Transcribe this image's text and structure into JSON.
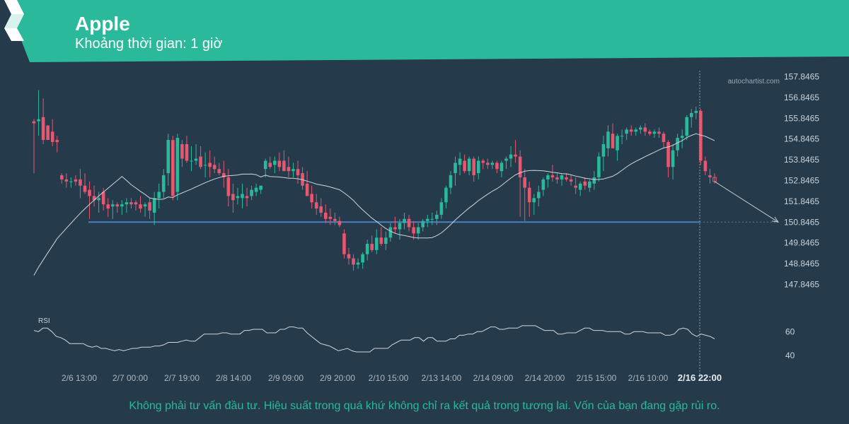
{
  "header": {
    "title": "Apple",
    "subtitle": "Khoảng thời gian: 1 giờ"
  },
  "watermark": "autochartist.com",
  "disclaimer": "Không phải tư vấn đầu tư. Hiệu suất trong quá khứ không chỉ ra kết quả trong tương lai. Vốn của bạn đang gặp rủi ro.",
  "colors": {
    "background": "#253a4b",
    "banner": "#2bb99b",
    "up_candle": "#2bb99b",
    "down_candle": "#e8566f",
    "support_line": "#4a7fc1",
    "moving_average": "#d0d6db",
    "rsi_line": "#d0d6db",
    "text": "#c9d2da"
  },
  "chart_data": {
    "type": "candlestick",
    "title": "Apple",
    "y_ticks": [
      "157.8465",
      "156.8465",
      "155.8465",
      "154.8465",
      "153.8465",
      "152.8465",
      "151.8465",
      "150.8465",
      "149.8465",
      "148.8465",
      "147.8465"
    ],
    "ylim": [
      147.25,
      158.0
    ],
    "x_labels": [
      "2/6 13:00",
      "2/7 00:00",
      "2/7 19:00",
      "2/8 14:00",
      "2/9 09:00",
      "2/9 20:00",
      "2/10 15:00",
      "2/13 14:00",
      "2/14 09:00",
      "2/14 20:00",
      "2/15 15:00",
      "2/16 10:00",
      "2/16 22:00"
    ],
    "x_label_highlight": "2/16 22:00",
    "support_level": 150.8465,
    "forecast_target": 150.8465,
    "candles": [
      [
        155.7,
        155.8,
        153.2,
        155.6
      ],
      [
        155.7,
        157.2,
        155.0,
        155.8
      ],
      [
        155.9,
        156.8,
        154.6,
        154.8
      ],
      [
        155.5,
        155.5,
        154.8,
        154.8
      ],
      [
        155.2,
        155.8,
        154.5,
        154.7
      ],
      [
        154.8,
        155.0,
        154.2,
        154.7
      ],
      [
        153.1,
        153.2,
        152.7,
        152.9
      ],
      [
        152.9,
        153.2,
        152.5,
        152.8
      ],
      [
        152.8,
        153.0,
        152.5,
        152.8
      ],
      [
        152.9,
        153.1,
        152.6,
        152.8
      ],
      [
        152.9,
        153.4,
        152.0,
        152.6
      ],
      [
        152.6,
        153.2,
        152.2,
        152.3
      ],
      [
        152.4,
        152.8,
        151.0,
        152.1
      ],
      [
        152.1,
        152.6,
        151.6,
        151.9
      ],
      [
        151.9,
        152.3,
        151.3,
        152.0
      ],
      [
        152.3,
        152.5,
        151.4,
        151.7
      ],
      [
        151.7,
        152.0,
        151.1,
        151.5
      ],
      [
        151.6,
        151.9,
        151.0,
        151.7
      ],
      [
        151.7,
        151.8,
        151.3,
        151.6
      ],
      [
        151.6,
        151.9,
        151.2,
        151.7
      ],
      [
        151.7,
        152.0,
        151.3,
        151.8
      ],
      [
        151.8,
        152.0,
        151.5,
        151.7
      ],
      [
        151.8,
        151.9,
        151.4,
        151.7
      ],
      [
        151.7,
        152.1,
        151.3,
        151.5
      ],
      [
        151.6,
        151.8,
        151.1,
        151.7
      ],
      [
        151.8,
        152.0,
        151.0,
        151.4
      ],
      [
        151.3,
        152.3,
        150.7,
        152.0
      ],
      [
        152.0,
        152.7,
        151.5,
        152.3
      ],
      [
        152.3,
        153.4,
        152.0,
        153.1
      ],
      [
        153.2,
        155.1,
        152.6,
        154.8
      ],
      [
        154.8,
        155.0,
        151.9,
        152.1
      ],
      [
        152.3,
        155.1,
        151.9,
        154.9
      ],
      [
        154.6,
        154.8,
        153.5,
        153.9
      ],
      [
        154.6,
        155.0,
        153.7,
        153.8
      ],
      [
        153.8,
        154.5,
        153.3,
        153.8
      ],
      [
        153.8,
        154.6,
        153.6,
        153.9
      ],
      [
        154.0,
        154.5,
        153.4,
        153.5
      ],
      [
        153.6,
        154.2,
        153.0,
        153.6
      ],
      [
        153.7,
        154.3,
        153.0,
        153.5
      ],
      [
        153.6,
        154.0,
        153.2,
        153.4
      ],
      [
        153.4,
        153.7,
        153.1,
        153.2
      ],
      [
        153.2,
        153.8,
        152.5,
        153.0
      ],
      [
        153.0,
        153.4,
        151.6,
        152.1
      ],
      [
        152.2,
        152.7,
        151.3,
        151.9
      ],
      [
        152.0,
        152.5,
        151.7,
        152.1
      ],
      [
        152.0,
        152.7,
        151.5,
        152.2
      ],
      [
        152.1,
        152.5,
        151.6,
        152.0
      ],
      [
        152.1,
        152.6,
        151.9,
        152.4
      ],
      [
        152.3,
        152.7,
        152.1,
        152.5
      ],
      [
        152.4,
        152.6,
        152.2,
        152.6
      ],
      [
        153.4,
        153.9,
        153.0,
        153.8
      ],
      [
        153.7,
        154.0,
        153.4,
        153.5
      ],
      [
        153.6,
        154.0,
        153.2,
        153.8
      ],
      [
        153.8,
        154.2,
        153.3,
        153.5
      ],
      [
        153.8,
        154.3,
        153.3,
        153.3
      ],
      [
        153.5,
        154.0,
        153.0,
        153.3
      ],
      [
        153.3,
        153.7,
        153.0,
        153.4
      ],
      [
        153.4,
        153.8,
        152.7,
        153.1
      ],
      [
        153.2,
        153.5,
        152.4,
        152.6
      ],
      [
        152.7,
        153.3,
        152.1,
        152.1
      ],
      [
        152.2,
        152.6,
        151.5,
        151.8
      ],
      [
        151.8,
        152.2,
        151.2,
        151.5
      ],
      [
        151.6,
        152.0,
        151.1,
        151.3
      ],
      [
        151.3,
        151.7,
        150.8,
        151.0
      ],
      [
        151.1,
        151.5,
        150.7,
        151.0
      ],
      [
        151.0,
        151.3,
        150.7,
        150.9
      ],
      [
        150.9,
        151.1,
        150.6,
        150.7
      ],
      [
        150.3,
        150.5,
        149.1,
        149.3
      ],
      [
        149.3,
        149.6,
        148.8,
        149.1
      ],
      [
        149.1,
        149.3,
        148.5,
        148.8
      ],
      [
        148.8,
        149.1,
        148.6,
        148.9
      ],
      [
        148.9,
        149.4,
        148.6,
        149.3
      ],
      [
        149.3,
        150.0,
        149.0,
        149.8
      ],
      [
        149.8,
        150.2,
        149.4,
        149.5
      ],
      [
        149.5,
        150.5,
        149.3,
        150.1
      ],
      [
        150.1,
        150.6,
        149.7,
        149.8
      ],
      [
        149.8,
        150.4,
        149.5,
        150.1
      ],
      [
        150.1,
        150.8,
        149.9,
        150.6
      ],
      [
        150.6,
        151.1,
        150.3,
        150.5
      ],
      [
        150.5,
        151.0,
        150.0,
        150.8
      ],
      [
        150.8,
        151.3,
        150.5,
        151.0
      ],
      [
        151.0,
        151.2,
        150.4,
        150.6
      ],
      [
        150.6,
        150.9,
        150.0,
        150.3
      ],
      [
        150.3,
        150.8,
        150.0,
        150.6
      ],
      [
        150.6,
        151.0,
        150.4,
        150.9
      ],
      [
        150.9,
        151.2,
        150.6,
        151.0
      ],
      [
        151.0,
        151.3,
        150.7,
        151.0
      ],
      [
        151.0,
        151.4,
        150.7,
        151.2
      ],
      [
        151.2,
        152.0,
        151.0,
        151.8
      ],
      [
        151.8,
        152.6,
        151.5,
        152.5
      ],
      [
        152.5,
        153.3,
        152.2,
        153.1
      ],
      [
        153.2,
        154.0,
        152.6,
        153.7
      ],
      [
        153.6,
        154.2,
        153.1,
        153.9
      ],
      [
        153.8,
        154.1,
        153.2,
        153.3
      ],
      [
        153.3,
        154.0,
        153.1,
        153.9
      ],
      [
        153.9,
        154.0,
        152.8,
        153.1
      ],
      [
        153.2,
        154.0,
        152.9,
        153.8
      ],
      [
        153.8,
        153.9,
        153.4,
        153.7
      ],
      [
        153.7,
        153.9,
        153.4,
        153.6
      ],
      [
        153.6,
        153.8,
        153.4,
        153.7
      ],
      [
        153.7,
        153.8,
        153.2,
        153.4
      ],
      [
        153.3,
        153.8,
        153.0,
        153.7
      ],
      [
        153.8,
        154.0,
        153.4,
        153.9
      ],
      [
        153.9,
        154.5,
        153.5,
        154.1
      ],
      [
        154.1,
        154.8,
        153.7,
        154.0
      ],
      [
        154.0,
        154.3,
        151.1,
        153.0
      ],
      [
        153.0,
        153.4,
        150.9,
        152.5
      ],
      [
        152.5,
        152.8,
        151.1,
        151.8
      ],
      [
        151.8,
        152.2,
        151.2,
        152.0
      ],
      [
        152.0,
        152.6,
        151.6,
        152.3
      ],
      [
        152.4,
        153.0,
        152.1,
        152.9
      ],
      [
        152.9,
        153.2,
        152.5,
        153.1
      ],
      [
        153.1,
        153.6,
        152.8,
        153.0
      ],
      [
        153.0,
        153.2,
        152.7,
        152.9
      ],
      [
        152.9,
        153.2,
        152.6,
        153.1
      ],
      [
        153.0,
        153.2,
        152.8,
        152.9
      ],
      [
        152.9,
        153.1,
        152.6,
        152.8
      ],
      [
        152.6,
        153.0,
        152.2,
        152.5
      ],
      [
        152.4,
        152.8,
        152.1,
        152.7
      ],
      [
        152.8,
        153.0,
        152.4,
        152.6
      ],
      [
        152.5,
        152.9,
        152.3,
        152.8
      ],
      [
        152.7,
        153.3,
        152.4,
        153.0
      ],
      [
        153.0,
        154.2,
        152.8,
        154.0
      ],
      [
        154.0,
        155.0,
        153.3,
        154.6
      ],
      [
        154.4,
        155.5,
        154.0,
        155.2
      ],
      [
        155.1,
        155.6,
        154.4,
        154.4
      ],
      [
        154.3,
        155.1,
        153.8,
        155.0
      ],
      [
        155.0,
        155.3,
        154.6,
        155.0
      ],
      [
        155.1,
        155.4,
        154.8,
        155.3
      ],
      [
        155.3,
        155.5,
        155.0,
        155.2
      ],
      [
        155.2,
        155.4,
        155.0,
        155.3
      ],
      [
        155.3,
        155.5,
        155.1,
        155.4
      ],
      [
        155.4,
        155.6,
        155.0,
        155.2
      ],
      [
        155.2,
        155.3,
        155.0,
        155.1
      ],
      [
        155.1,
        155.3,
        154.9,
        155.2
      ],
      [
        155.2,
        155.4,
        154.9,
        155.1
      ],
      [
        155.1,
        155.2,
        154.4,
        154.7
      ],
      [
        154.7,
        154.8,
        153.0,
        153.5
      ],
      [
        153.5,
        154.6,
        152.9,
        154.3
      ],
      [
        154.3,
        155.1,
        154.0,
        154.9
      ],
      [
        154.9,
        155.3,
        154.4,
        155.0
      ],
      [
        155.0,
        156.0,
        154.8,
        155.9
      ],
      [
        155.9,
        156.3,
        155.4,
        156.1
      ],
      [
        156.1,
        156.4,
        155.8,
        156.2
      ],
      [
        156.2,
        156.3,
        153.6,
        153.8
      ],
      [
        153.8,
        154.0,
        153.1,
        153.3
      ],
      [
        153.1,
        153.4,
        152.7,
        153.0
      ],
      [
        153.0,
        153.2,
        152.7,
        152.8
      ]
    ],
    "rsi": {
      "label": "RSI",
      "ticks": [
        "60",
        "40"
      ],
      "ylim": [
        30,
        75
      ],
      "values": [
        61,
        60,
        63,
        63,
        60,
        56,
        55,
        53,
        50,
        50,
        50,
        50,
        48,
        47,
        48,
        46,
        46,
        45,
        44,
        45,
        44,
        45,
        46,
        46,
        47,
        47,
        47,
        48,
        48,
        49,
        51,
        51,
        51,
        52,
        53,
        52,
        52,
        55,
        58,
        58,
        58,
        58,
        59,
        59,
        58,
        58,
        58,
        61,
        61,
        62,
        62,
        62,
        59,
        59,
        59,
        62,
        62,
        64,
        64,
        63,
        63,
        59,
        56,
        53,
        50,
        49,
        48,
        46,
        44,
        45,
        46,
        44,
        43,
        43,
        43,
        43,
        46,
        46,
        46,
        46,
        49,
        51,
        53,
        53,
        53,
        55,
        55,
        52,
        55,
        55,
        52,
        52,
        52,
        54,
        54,
        57,
        57,
        58,
        58,
        60,
        60,
        62,
        64,
        64,
        62,
        62,
        63,
        63,
        63,
        65,
        65,
        65,
        65,
        63,
        61,
        61,
        61,
        58,
        58,
        59,
        59,
        59,
        61,
        63,
        63,
        61,
        61,
        61,
        60,
        60,
        60,
        60,
        58,
        58,
        60,
        60,
        60,
        59,
        59,
        59,
        59,
        57,
        57,
        58,
        62,
        63,
        62,
        58,
        56,
        58,
        57,
        56,
        54
      ]
    }
  }
}
